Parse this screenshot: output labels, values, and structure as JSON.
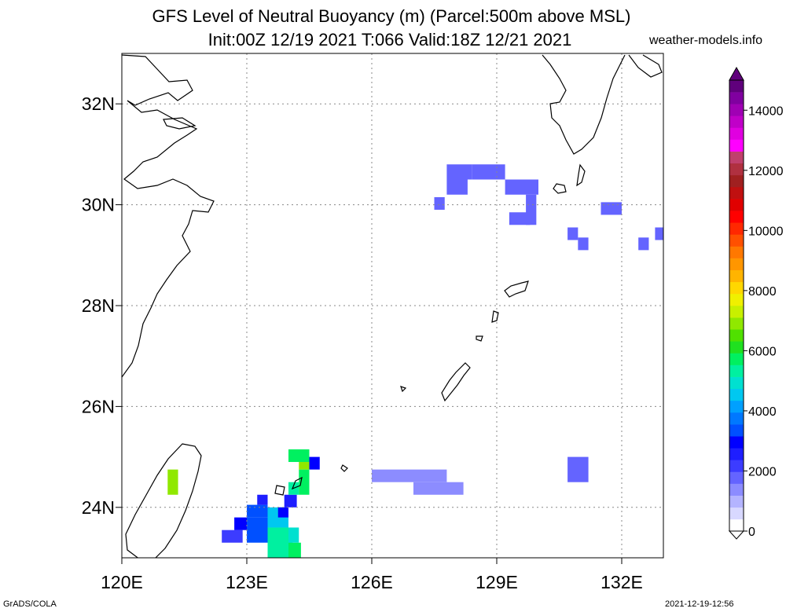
{
  "title_line1": "GFS Level of Neutral Buoyancy (m) (Parcel:500m above MSL)",
  "title_line2": "Init:00Z 12/19 2021 T:066 Valid:18Z 12/21 2021",
  "brand": "weather-models.info",
  "footer_left": "GrADS/COLA",
  "footer_right": "2021-12-19-12:56",
  "map": {
    "lon_range": [
      120,
      133
    ],
    "lat_range": [
      23,
      33
    ],
    "lon_ticks": [
      "120E",
      "123E",
      "126E",
      "129E",
      "132E"
    ],
    "lat_ticks": [
      "24N",
      "26N",
      "28N",
      "30N",
      "32N"
    ],
    "grid": true
  },
  "colorbar": {
    "min": 0,
    "max": 15000,
    "tick_labels": [
      "0",
      "2000",
      "4000",
      "6000",
      "8000",
      "10000",
      "12000",
      "14000"
    ],
    "colors": [
      "#ffffff",
      "#d8d8ff",
      "#b4b4ff",
      "#8c8cff",
      "#6464ff",
      "#3c3cff",
      "#1e1eff",
      "#0000ff",
      "#0050ff",
      "#0078ff",
      "#00a0ff",
      "#00c8f0",
      "#00e0d0",
      "#00f0a0",
      "#00f060",
      "#20e020",
      "#50e000",
      "#90e800",
      "#c8f000",
      "#f0f000",
      "#ffd700",
      "#ffb400",
      "#ff9600",
      "#ff7800",
      "#ff5000",
      "#ff2800",
      "#ff0000",
      "#e00000",
      "#c01010",
      "#a02020",
      "#b03040",
      "#c0406c",
      "#ff00ff",
      "#e000e0",
      "#c000c8",
      "#a000b4",
      "#8000a0",
      "#60007c"
    ]
  },
  "cells": [
    {
      "lon": 127.8,
      "lat": 30.5,
      "w": 0.6,
      "h": 0.3,
      "v": 1800
    },
    {
      "lon": 128.4,
      "lat": 30.5,
      "w": 0.8,
      "h": 0.3,
      "v": 1800
    },
    {
      "lon": 127.8,
      "lat": 30.2,
      "w": 0.5,
      "h": 0.3,
      "v": 1800
    },
    {
      "lon": 129.2,
      "lat": 30.2,
      "w": 0.8,
      "h": 0.3,
      "v": 1800
    },
    {
      "lon": 127.5,
      "lat": 29.9,
      "w": 0.25,
      "h": 0.25,
      "v": 1800
    },
    {
      "lon": 129.7,
      "lat": 29.6,
      "w": 0.25,
      "h": 0.6,
      "v": 1800
    },
    {
      "lon": 129.3,
      "lat": 29.6,
      "w": 0.5,
      "h": 0.25,
      "v": 1800
    },
    {
      "lon": 131.5,
      "lat": 29.8,
      "w": 0.5,
      "h": 0.25,
      "v": 1800
    },
    {
      "lon": 130.7,
      "lat": 29.3,
      "w": 0.25,
      "h": 0.25,
      "v": 1800
    },
    {
      "lon": 130.95,
      "lat": 29.1,
      "w": 0.25,
      "h": 0.25,
      "v": 1800
    },
    {
      "lon": 132.4,
      "lat": 29.1,
      "w": 0.25,
      "h": 0.25,
      "v": 1800
    },
    {
      "lon": 132.8,
      "lat": 29.3,
      "w": 0.25,
      "h": 0.25,
      "v": 1800
    },
    {
      "lon": 126.0,
      "lat": 24.5,
      "w": 1.8,
      "h": 0.25,
      "v": 1500
    },
    {
      "lon": 127.0,
      "lat": 24.25,
      "w": 1.2,
      "h": 0.25,
      "v": 1500
    },
    {
      "lon": 130.7,
      "lat": 24.5,
      "w": 0.5,
      "h": 0.5,
      "v": 1600
    },
    {
      "lon": 122.4,
      "lat": 23.3,
      "w": 0.5,
      "h": 0.25,
      "v": 2200
    },
    {
      "lon": 122.7,
      "lat": 23.55,
      "w": 0.3,
      "h": 0.25,
      "v": 3000
    },
    {
      "lon": 123.0,
      "lat": 23.3,
      "w": 0.5,
      "h": 0.5,
      "v": 3200
    },
    {
      "lon": 123.0,
      "lat": 23.8,
      "w": 0.5,
      "h": 0.25,
      "v": 3500
    },
    {
      "lon": 123.25,
      "lat": 24.05,
      "w": 0.25,
      "h": 0.2,
      "v": 2600
    },
    {
      "lon": 123.5,
      "lat": 23.6,
      "w": 0.5,
      "h": 0.4,
      "v": 4500
    },
    {
      "lon": 123.5,
      "lat": 23.0,
      "w": 0.6,
      "h": 0.6,
      "v": 5200
    },
    {
      "lon": 124.0,
      "lat": 23.0,
      "w": 0.3,
      "h": 0.3,
      "v": 5600
    },
    {
      "lon": 124.0,
      "lat": 23.3,
      "w": 0.25,
      "h": 0.3,
      "v": 4800
    },
    {
      "lon": 123.75,
      "lat": 23.8,
      "w": 0.25,
      "h": 0.2,
      "v": 2800
    },
    {
      "lon": 123.9,
      "lat": 24.0,
      "w": 0.3,
      "h": 0.25,
      "v": 2400
    },
    {
      "lon": 124.0,
      "lat": 24.25,
      "w": 0.25,
      "h": 0.25,
      "v": 5400
    },
    {
      "lon": 124.25,
      "lat": 24.25,
      "w": 0.25,
      "h": 0.5,
      "v": 5800
    },
    {
      "lon": 124.25,
      "lat": 24.75,
      "w": 0.25,
      "h": 0.25,
      "v": 6800
    },
    {
      "lon": 124.5,
      "lat": 24.75,
      "w": 0.25,
      "h": 0.25,
      "v": 2800
    },
    {
      "lon": 124.0,
      "lat": 24.9,
      "w": 0.5,
      "h": 0.25,
      "v": 5600
    },
    {
      "lon": 121.1,
      "lat": 24.25,
      "w": 0.25,
      "h": 0.5,
      "v": 7000
    }
  ]
}
